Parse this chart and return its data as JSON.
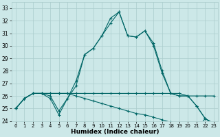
{
  "xlabel": "Humidex (Indice chaleur)",
  "bg_color": "#cce8e8",
  "grid_color": "#aacccc",
  "line_color": "#006666",
  "xlim": [
    -0.5,
    23.5
  ],
  "ylim": [
    24,
    33.5
  ],
  "yticks": [
    24,
    25,
    26,
    27,
    28,
    29,
    30,
    31,
    32,
    33
  ],
  "xticks": [
    0,
    1,
    2,
    3,
    4,
    5,
    6,
    7,
    8,
    9,
    10,
    11,
    12,
    13,
    14,
    15,
    16,
    17,
    18,
    19,
    20,
    21,
    22,
    23
  ],
  "series": [
    [
      25.0,
      25.8,
      26.2,
      26.2,
      26.0,
      24.8,
      25.8,
      26.8,
      29.3,
      29.8,
      30.8,
      32.2,
      32.7,
      30.8,
      30.7,
      31.2,
      30.0,
      27.8,
      26.2,
      26.0,
      26.0,
      25.2,
      24.2,
      23.8
    ],
    [
      25.0,
      25.8,
      26.2,
      26.2,
      25.8,
      24.5,
      25.8,
      27.2,
      29.3,
      29.8,
      30.8,
      31.8,
      32.7,
      30.8,
      30.7,
      31.2,
      30.2,
      28.0,
      26.2,
      26.0,
      26.0,
      25.2,
      24.2,
      23.8
    ],
    [
      25.0,
      25.8,
      26.2,
      26.2,
      26.2,
      26.2,
      26.2,
      26.2,
      26.2,
      26.2,
      26.2,
      26.2,
      26.2,
      26.2,
      26.2,
      26.2,
      26.2,
      26.2,
      26.2,
      26.2,
      26.0,
      26.0,
      26.0,
      26.0
    ],
    [
      25.0,
      25.8,
      26.2,
      26.2,
      26.2,
      26.2,
      26.2,
      26.0,
      25.8,
      25.6,
      25.4,
      25.2,
      25.0,
      24.8,
      24.6,
      24.5,
      24.3,
      24.1,
      23.9,
      23.7,
      23.5,
      23.3,
      24.2,
      23.7
    ]
  ]
}
